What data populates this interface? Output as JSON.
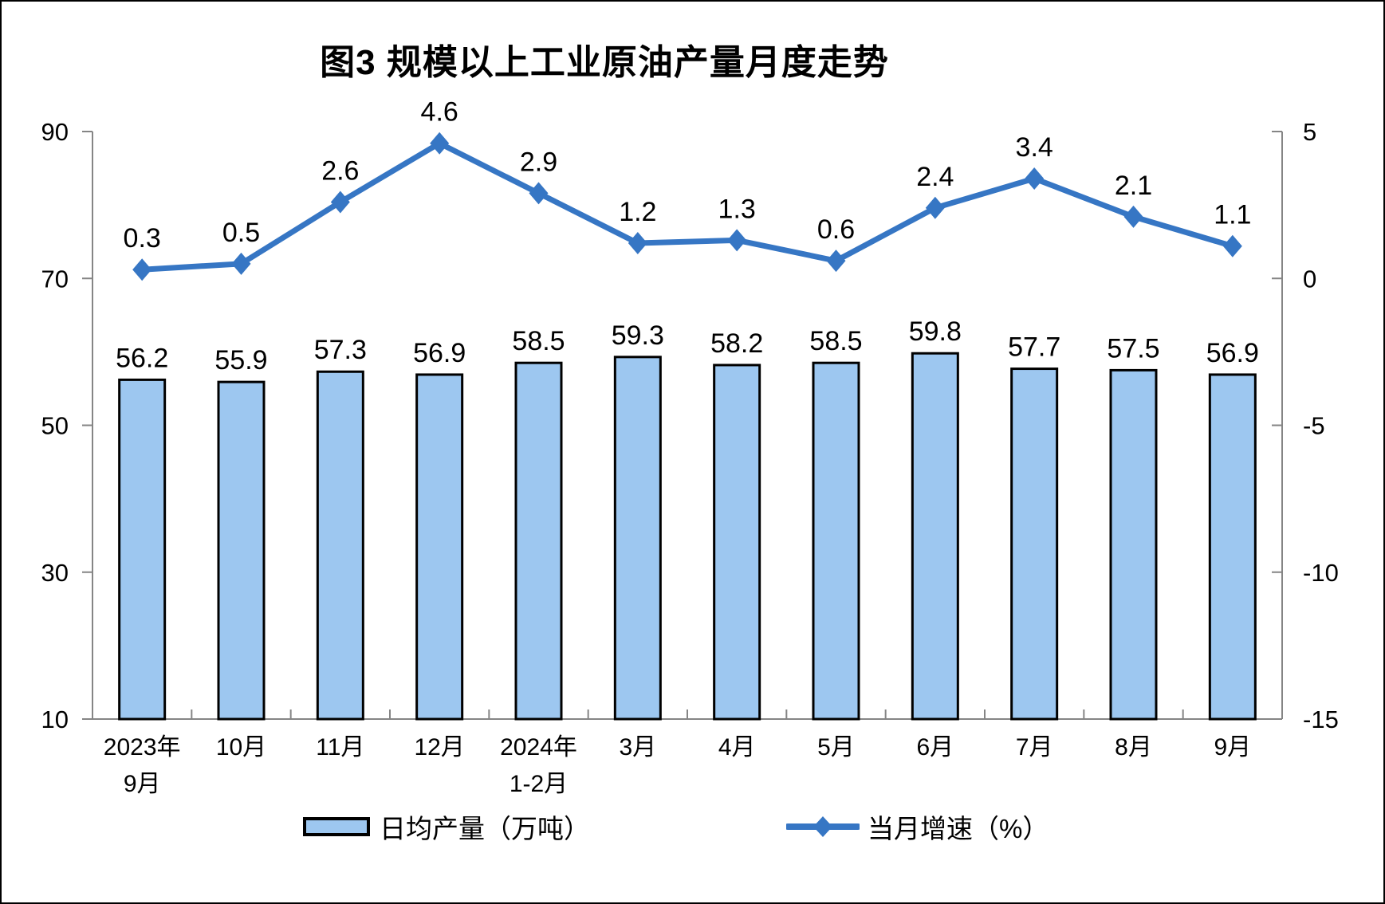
{
  "title": "图3 规模以上工业原油产量月度走势",
  "legend": {
    "bar_label": "日均产量（万吨）",
    "line_label": "当月增速（%）"
  },
  "colors": {
    "bar_fill": "#9DC7F0",
    "bar_stroke": "#000000",
    "line": "#3676C4",
    "axis": "#858585",
    "text": "#000000"
  },
  "chart_data": {
    "type": "bar+line",
    "title": "图3 规模以上工业原油产量月度走势",
    "categories": [
      "2023年\n9月",
      "10月",
      "11月",
      "12月",
      "2024年\n1-2月",
      "3月",
      "4月",
      "5月",
      "6月",
      "7月",
      "8月",
      "9月"
    ],
    "series": [
      {
        "name": "日均产量（万吨）",
        "type": "bar",
        "axis": "left",
        "values": [
          56.2,
          55.9,
          57.3,
          56.9,
          58.5,
          59.3,
          58.2,
          58.5,
          59.8,
          57.7,
          57.5,
          56.9
        ]
      },
      {
        "name": "当月增速（%）",
        "type": "line",
        "axis": "right",
        "values": [
          0.3,
          0.5,
          2.6,
          4.6,
          2.9,
          1.2,
          1.3,
          0.6,
          2.4,
          3.4,
          2.1,
          1.1
        ]
      }
    ],
    "left_axis": {
      "min": 10,
      "max": 90,
      "ticks": [
        10,
        30,
        50,
        70,
        90
      ]
    },
    "right_axis": {
      "min": -15,
      "max": 5,
      "ticks": [
        -15,
        -10,
        -5,
        0,
        5
      ]
    },
    "grid": false,
    "legend_position": "bottom",
    "data_labels": true
  }
}
